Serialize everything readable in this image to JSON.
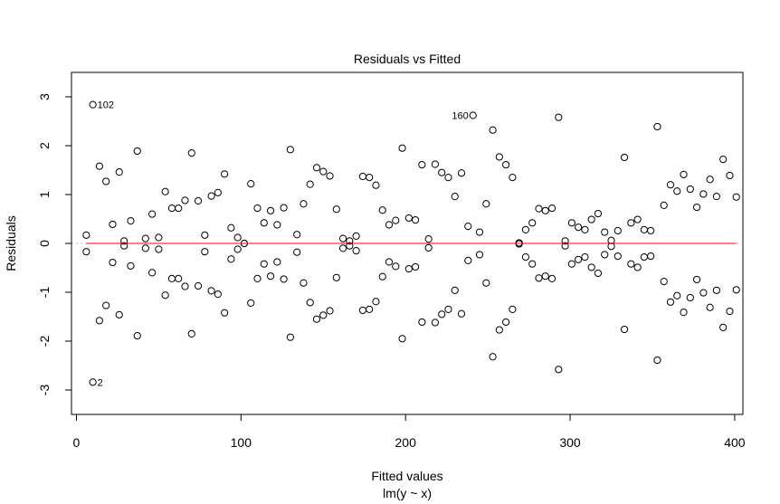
{
  "chart_data": {
    "type": "scatter",
    "title": "Residuals vs Fitted",
    "xlabel": "Fitted values",
    "subtitle": "lm(y ~ x)",
    "ylabel": "Residuals",
    "xlim": [
      -3,
      405
    ],
    "ylim": [
      -3.5,
      3.5
    ],
    "xticks": [
      0,
      100,
      200,
      300,
      400
    ],
    "yticks": [
      -3,
      -2,
      -1,
      0,
      1,
      2,
      3
    ],
    "colors": {
      "points": "#000000",
      "smooth_line": "#ff0000",
      "reference_line": "#bebebe"
    },
    "reference_line": {
      "y": 0,
      "style": "dotted"
    },
    "smooth_line": {
      "x": [
        6,
        401
      ],
      "y": [
        0,
        0
      ]
    },
    "labeled_points": [
      {
        "label": "102",
        "x": 10,
        "y": 2.84
      },
      {
        "label": "2",
        "x": 10,
        "y": -2.84
      },
      {
        "label": "160",
        "x": 241,
        "y": 2.62
      }
    ],
    "points": [
      [
        6,
        0.17
      ],
      [
        6,
        -0.17
      ],
      [
        14,
        1.58
      ],
      [
        14,
        -1.58
      ],
      [
        18,
        1.27
      ],
      [
        18,
        -1.27
      ],
      [
        22,
        0.39
      ],
      [
        22,
        -0.39
      ],
      [
        26,
        1.46
      ],
      [
        26,
        -1.46
      ],
      [
        29,
        0.05
      ],
      [
        29,
        -0.05
      ],
      [
        33,
        0.46
      ],
      [
        33,
        -0.46
      ],
      [
        37,
        1.89
      ],
      [
        37,
        -1.89
      ],
      [
        42,
        0.1
      ],
      [
        42,
        -0.1
      ],
      [
        46,
        0.6
      ],
      [
        46,
        -0.6
      ],
      [
        50,
        0.12
      ],
      [
        50,
        -0.12
      ],
      [
        54,
        1.06
      ],
      [
        54,
        -1.06
      ],
      [
        58,
        0.72
      ],
      [
        58,
        -0.72
      ],
      [
        62,
        0.72
      ],
      [
        62,
        -0.72
      ],
      [
        66,
        0.88
      ],
      [
        66,
        -0.88
      ],
      [
        70,
        1.85
      ],
      [
        70,
        -1.85
      ],
      [
        74,
        0.87
      ],
      [
        74,
        -0.87
      ],
      [
        78,
        0.17
      ],
      [
        78,
        -0.17
      ],
      [
        82,
        0.97
      ],
      [
        82,
        -0.97
      ],
      [
        86,
        1.04
      ],
      [
        86,
        -1.04
      ],
      [
        90,
        1.42
      ],
      [
        90,
        -1.42
      ],
      [
        94,
        0.32
      ],
      [
        94,
        -0.32
      ],
      [
        98,
        0.12
      ],
      [
        98,
        -0.12
      ],
      [
        102,
        0.0
      ],
      [
        102,
        0.0
      ],
      [
        106,
        1.22
      ],
      [
        106,
        -1.22
      ],
      [
        110,
        0.72
      ],
      [
        110,
        -0.72
      ],
      [
        114,
        0.42
      ],
      [
        114,
        -0.42
      ],
      [
        118,
        0.67
      ],
      [
        118,
        -0.67
      ],
      [
        122,
        0.38
      ],
      [
        122,
        -0.38
      ],
      [
        126,
        0.73
      ],
      [
        126,
        -0.73
      ],
      [
        130,
        1.92
      ],
      [
        130,
        -1.92
      ],
      [
        134,
        0.18
      ],
      [
        134,
        -0.18
      ],
      [
        138,
        0.81
      ],
      [
        138,
        -0.81
      ],
      [
        142,
        1.21
      ],
      [
        142,
        -1.21
      ],
      [
        146,
        1.55
      ],
      [
        146,
        -1.55
      ],
      [
        150,
        1.47
      ],
      [
        150,
        -1.47
      ],
      [
        154,
        1.38
      ],
      [
        154,
        -1.38
      ],
      [
        158,
        0.7
      ],
      [
        158,
        -0.7
      ],
      [
        162,
        0.1
      ],
      [
        162,
        -0.1
      ],
      [
        166,
        0.05
      ],
      [
        166,
        -0.05
      ],
      [
        170,
        0.15
      ],
      [
        170,
        -0.15
      ],
      [
        174,
        1.37
      ],
      [
        174,
        -1.37
      ],
      [
        178,
        1.35
      ],
      [
        178,
        -1.35
      ],
      [
        182,
        1.19
      ],
      [
        182,
        -1.19
      ],
      [
        186,
        0.68
      ],
      [
        186,
        -0.68
      ],
      [
        190,
        0.38
      ],
      [
        190,
        -0.38
      ],
      [
        194,
        0.47
      ],
      [
        194,
        -0.47
      ],
      [
        198,
        1.95
      ],
      [
        198,
        -1.95
      ],
      [
        202,
        0.52
      ],
      [
        202,
        -0.52
      ],
      [
        206,
        0.48
      ],
      [
        206,
        -0.48
      ],
      [
        210,
        1.61
      ],
      [
        210,
        -1.61
      ],
      [
        214,
        0.09
      ],
      [
        214,
        -0.09
      ],
      [
        218,
        1.62
      ],
      [
        218,
        -1.62
      ],
      [
        222,
        1.45
      ],
      [
        222,
        -1.45
      ],
      [
        226,
        1.35
      ],
      [
        226,
        -1.35
      ],
      [
        230,
        0.96
      ],
      [
        230,
        -0.96
      ],
      [
        234,
        1.44
      ],
      [
        234,
        -1.44
      ],
      [
        238,
        0.35
      ],
      [
        238,
        -0.35
      ],
      [
        245,
        0.23
      ],
      [
        245,
        -0.23
      ],
      [
        249,
        0.81
      ],
      [
        249,
        -0.81
      ],
      [
        253,
        2.32
      ],
      [
        253,
        -2.32
      ],
      [
        257,
        1.77
      ],
      [
        257,
        -1.77
      ],
      [
        261,
        1.61
      ],
      [
        261,
        -1.61
      ],
      [
        265,
        1.35
      ],
      [
        265,
        -1.35
      ],
      [
        269,
        0.01
      ],
      [
        269,
        -0.01
      ],
      [
        273,
        0.28
      ],
      [
        273,
        -0.28
      ],
      [
        277,
        0.42
      ],
      [
        277,
        -0.42
      ],
      [
        281,
        0.71
      ],
      [
        281,
        -0.71
      ],
      [
        285,
        0.67
      ],
      [
        285,
        -0.67
      ],
      [
        289,
        0.72
      ],
      [
        289,
        -0.72
      ],
      [
        293,
        2.58
      ],
      [
        293,
        -2.58
      ],
      [
        297,
        0.05
      ],
      [
        297,
        -0.05
      ],
      [
        301,
        0.42
      ],
      [
        301,
        -0.42
      ],
      [
        305,
        0.33
      ],
      [
        305,
        -0.33
      ],
      [
        309,
        0.28
      ],
      [
        309,
        -0.28
      ],
      [
        313,
        0.49
      ],
      [
        313,
        -0.49
      ],
      [
        317,
        0.61
      ],
      [
        317,
        -0.61
      ],
      [
        321,
        0.23
      ],
      [
        321,
        -0.23
      ],
      [
        325,
        0.06
      ],
      [
        325,
        -0.06
      ],
      [
        329,
        0.26
      ],
      [
        329,
        -0.26
      ],
      [
        333,
        1.76
      ],
      [
        333,
        -1.76
      ],
      [
        337,
        0.42
      ],
      [
        337,
        -0.42
      ],
      [
        341,
        0.49
      ],
      [
        341,
        -0.49
      ],
      [
        345,
        0.28
      ],
      [
        345,
        -0.28
      ],
      [
        349,
        0.26
      ],
      [
        349,
        -0.26
      ],
      [
        353,
        2.39
      ],
      [
        353,
        -2.39
      ],
      [
        357,
        0.78
      ],
      [
        357,
        -0.78
      ],
      [
        361,
        1.2
      ],
      [
        361,
        -1.2
      ],
      [
        365,
        1.07
      ],
      [
        365,
        -1.07
      ],
      [
        369,
        1.41
      ],
      [
        369,
        -1.41
      ],
      [
        373,
        1.11
      ],
      [
        373,
        -1.11
      ],
      [
        377,
        0.74
      ],
      [
        377,
        -0.74
      ],
      [
        381,
        1.01
      ],
      [
        381,
        -1.01
      ],
      [
        385,
        1.31
      ],
      [
        385,
        -1.31
      ],
      [
        389,
        0.96
      ],
      [
        389,
        -0.96
      ],
      [
        393,
        1.72
      ],
      [
        393,
        -1.72
      ],
      [
        397,
        1.39
      ],
      [
        397,
        -1.39
      ],
      [
        401,
        0.95
      ],
      [
        401,
        -0.95
      ]
    ]
  }
}
